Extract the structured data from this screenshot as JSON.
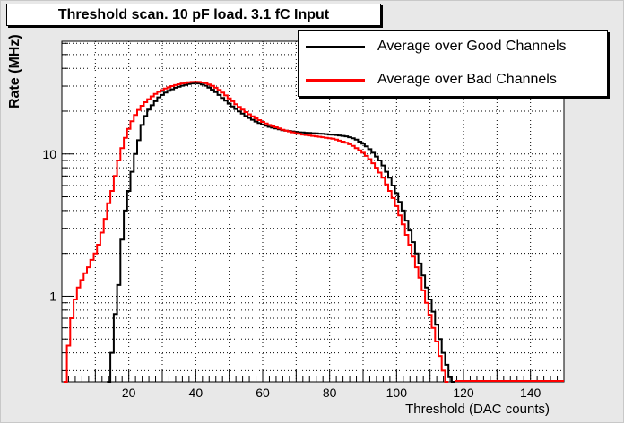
{
  "chart_data": {
    "type": "line",
    "title": "Threshold scan. 10 pF load. 3.1 fC Input",
    "xlabel": "Threshold (DAC counts)",
    "ylabel": "Rate (MHz)",
    "xlim": [
      0,
      150
    ],
    "ylim": [
      0.25,
      62
    ],
    "yscale": "log",
    "grid": true,
    "legend_position": "top-right",
    "x_ticks": [
      20,
      40,
      60,
      80,
      100,
      120,
      140
    ],
    "y_ticks": [
      {
        "value": 1,
        "label": "1"
      },
      {
        "value": 10,
        "label": "10"
      }
    ],
    "series": [
      {
        "name": "Average over Good Channels",
        "color": "#000000",
        "points": [
          [
            14,
            0.25
          ],
          [
            15,
            0.4
          ],
          [
            16,
            0.75
          ],
          [
            17,
            1.2
          ],
          [
            18,
            2.5
          ],
          [
            19,
            4.0
          ],
          [
            20,
            5.5
          ],
          [
            21,
            7.5
          ],
          [
            22,
            10
          ],
          [
            23,
            12.5
          ],
          [
            24,
            16
          ],
          [
            25,
            18.5
          ],
          [
            26,
            20.5
          ],
          [
            27,
            22
          ],
          [
            28,
            23.5
          ],
          [
            29,
            25
          ],
          [
            30,
            26
          ],
          [
            31,
            27
          ],
          [
            32,
            27.8
          ],
          [
            33,
            28.5
          ],
          [
            34,
            29.2
          ],
          [
            35,
            29.7
          ],
          [
            36,
            30.2
          ],
          [
            37,
            30.6
          ],
          [
            38,
            31
          ],
          [
            39,
            31.3
          ],
          [
            40,
            31.5
          ],
          [
            41,
            31.3
          ],
          [
            42,
            30.8
          ],
          [
            43,
            30.2
          ],
          [
            44,
            29.3
          ],
          [
            45,
            28.3
          ],
          [
            46,
            27.2
          ],
          [
            47,
            26
          ],
          [
            48,
            24.8
          ],
          [
            49,
            23.7
          ],
          [
            50,
            22.6
          ],
          [
            51,
            21.6
          ],
          [
            52,
            20.7
          ],
          [
            53,
            19.9
          ],
          [
            54,
            19.2
          ],
          [
            55,
            18.5
          ],
          [
            56,
            17.9
          ],
          [
            57,
            17.4
          ],
          [
            58,
            16.9
          ],
          [
            59,
            16.5
          ],
          [
            60,
            16.1
          ],
          [
            61,
            15.8
          ],
          [
            62,
            15.5
          ],
          [
            63,
            15.3
          ],
          [
            64,
            15.1
          ],
          [
            65,
            14.9
          ],
          [
            66,
            14.7
          ],
          [
            67,
            14.6
          ],
          [
            68,
            14.5
          ],
          [
            69,
            14.4
          ],
          [
            70,
            14.3
          ],
          [
            71,
            14.2
          ],
          [
            72,
            14.15
          ],
          [
            73,
            14.1
          ],
          [
            74,
            14.05
          ],
          [
            75,
            14.0
          ],
          [
            76,
            13.95
          ],
          [
            77,
            13.9
          ],
          [
            78,
            13.85
          ],
          [
            79,
            13.8
          ],
          [
            80,
            13.7
          ],
          [
            81,
            13.65
          ],
          [
            82,
            13.6
          ],
          [
            83,
            13.5
          ],
          [
            84,
            13.4
          ],
          [
            85,
            13.3
          ],
          [
            86,
            13.1
          ],
          [
            87,
            12.9
          ],
          [
            88,
            12.6
          ],
          [
            89,
            12.2
          ],
          [
            90,
            11.8
          ],
          [
            91,
            11.3
          ],
          [
            92,
            10.8
          ],
          [
            93,
            10.2
          ],
          [
            94,
            9.6
          ],
          [
            95,
            9.0
          ],
          [
            96,
            8.3
          ],
          [
            97,
            7.5
          ],
          [
            98,
            6.8
          ],
          [
            99,
            6.0
          ],
          [
            100,
            5.3
          ],
          [
            101,
            4.6
          ],
          [
            102,
            4.0
          ],
          [
            103,
            3.4
          ],
          [
            104,
            2.9
          ],
          [
            105,
            2.4
          ],
          [
            106,
            2.0
          ],
          [
            107,
            1.7
          ],
          [
            108,
            1.4
          ],
          [
            109,
            1.15
          ],
          [
            110,
            0.95
          ],
          [
            111,
            0.78
          ],
          [
            112,
            0.63
          ],
          [
            113,
            0.5
          ],
          [
            114,
            0.4
          ],
          [
            115,
            0.33
          ],
          [
            116,
            0.27
          ],
          [
            117,
            0.25
          ]
        ]
      },
      {
        "name": "Average over Bad Channels",
        "color": "#ff0000",
        "points": [
          [
            1,
            0.25
          ],
          [
            2,
            0.45
          ],
          [
            3,
            0.7
          ],
          [
            4,
            0.95
          ],
          [
            5,
            1.15
          ],
          [
            6,
            1.3
          ],
          [
            7,
            1.45
          ],
          [
            8,
            1.6
          ],
          [
            9,
            1.8
          ],
          [
            10,
            2.0
          ],
          [
            11,
            2.3
          ],
          [
            12,
            2.8
          ],
          [
            13,
            3.5
          ],
          [
            14,
            4.5
          ],
          [
            15,
            5.5
          ],
          [
            16,
            7.0
          ],
          [
            17,
            9.0
          ],
          [
            18,
            11
          ],
          [
            19,
            13
          ],
          [
            20,
            15
          ],
          [
            21,
            17
          ],
          [
            22,
            18.8
          ],
          [
            23,
            20.4
          ],
          [
            24,
            21.8
          ],
          [
            25,
            23.1
          ],
          [
            26,
            24.3
          ],
          [
            27,
            25.4
          ],
          [
            28,
            26.4
          ],
          [
            29,
            27.3
          ],
          [
            30,
            28.1
          ],
          [
            31,
            28.8
          ],
          [
            32,
            29.4
          ],
          [
            33,
            30
          ],
          [
            34,
            30.5
          ],
          [
            35,
            30.9
          ],
          [
            36,
            31.3
          ],
          [
            37,
            31.6
          ],
          [
            38,
            31.9
          ],
          [
            39,
            32.1
          ],
          [
            40,
            32.2
          ],
          [
            41,
            32.1
          ],
          [
            42,
            31.8
          ],
          [
            43,
            31.4
          ],
          [
            44,
            30.8
          ],
          [
            45,
            30.1
          ],
          [
            46,
            29.2
          ],
          [
            47,
            28.2
          ],
          [
            48,
            27.0
          ],
          [
            49,
            25.8
          ],
          [
            50,
            24.6
          ],
          [
            51,
            23.5
          ],
          [
            52,
            22.4
          ],
          [
            53,
            21.4
          ],
          [
            54,
            20.5
          ],
          [
            55,
            19.7
          ],
          [
            56,
            19.0
          ],
          [
            57,
            18.4
          ],
          [
            58,
            17.8
          ],
          [
            59,
            17.3
          ],
          [
            60,
            16.8
          ],
          [
            61,
            16.4
          ],
          [
            62,
            16.0
          ],
          [
            63,
            15.7
          ],
          [
            64,
            15.4
          ],
          [
            65,
            15.1
          ],
          [
            66,
            14.8
          ],
          [
            67,
            14.6
          ],
          [
            68,
            14.4
          ],
          [
            69,
            14.2
          ],
          [
            70,
            14.0
          ],
          [
            71,
            13.85
          ],
          [
            72,
            13.7
          ],
          [
            73,
            13.6
          ],
          [
            74,
            13.5
          ],
          [
            75,
            13.4
          ],
          [
            76,
            13.3
          ],
          [
            77,
            13.2
          ],
          [
            78,
            13.1
          ],
          [
            79,
            13.0
          ],
          [
            80,
            12.9
          ],
          [
            81,
            12.8
          ],
          [
            82,
            12.6
          ],
          [
            83,
            12.4
          ],
          [
            84,
            12.2
          ],
          [
            85,
            12.0
          ],
          [
            86,
            11.7
          ],
          [
            87,
            11.4
          ],
          [
            88,
            11.0
          ],
          [
            89,
            10.6
          ],
          [
            90,
            10.2
          ],
          [
            91,
            9.7
          ],
          [
            92,
            9.2
          ],
          [
            93,
            8.6
          ],
          [
            94,
            8.0
          ],
          [
            95,
            7.4
          ],
          [
            96,
            6.8
          ],
          [
            97,
            6.1
          ],
          [
            98,
            5.5
          ],
          [
            99,
            4.9
          ],
          [
            100,
            4.3
          ],
          [
            101,
            3.7
          ],
          [
            102,
            3.2
          ],
          [
            103,
            2.7
          ],
          [
            104,
            2.3
          ],
          [
            105,
            1.9
          ],
          [
            106,
            1.6
          ],
          [
            107,
            1.35
          ],
          [
            108,
            1.1
          ],
          [
            109,
            0.9
          ],
          [
            110,
            0.74
          ],
          [
            111,
            0.6
          ],
          [
            112,
            0.48
          ],
          [
            113,
            0.38
          ],
          [
            114,
            0.3
          ],
          [
            115,
            0.25
          ]
        ]
      }
    ]
  }
}
